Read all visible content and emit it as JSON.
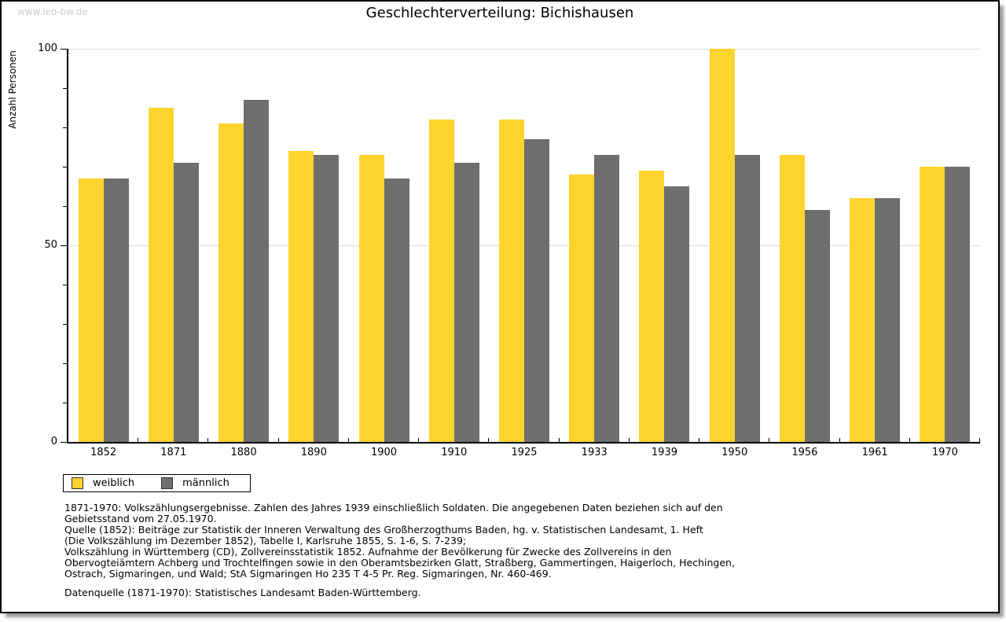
{
  "watermark": "www.leo-bw.de",
  "title": "Geschlechterverteilung: Bichishausen",
  "chart_data": {
    "type": "bar",
    "title": "Geschlechterverteilung: Bichishausen",
    "xlabel": "",
    "ylabel": "Anzahl Personen",
    "ylim": [
      0,
      100
    ],
    "y_major_ticks": [
      0,
      50,
      100
    ],
    "y_minor_step": 10,
    "grid_values": [
      50,
      100
    ],
    "grid_color": "#dddddd",
    "legend_position": "bottom-left",
    "categories": [
      "1852",
      "1871",
      "1880",
      "1890",
      "1900",
      "1910",
      "1925",
      "1933",
      "1939",
      "1950",
      "1956",
      "1961",
      "1970"
    ],
    "series": [
      {
        "name": "weiblich",
        "color": "#fdd32e",
        "values": [
          67,
          85,
          81,
          74,
          73,
          82,
          82,
          68,
          69,
          100,
          73,
          62,
          70
        ]
      },
      {
        "name": "männlich",
        "color": "#6e6e6e",
        "values": [
          67,
          71,
          87,
          73,
          67,
          71,
          77,
          73,
          65,
          73,
          59,
          62,
          70
        ]
      }
    ]
  },
  "footer": {
    "note": "1871-1970: Volkszählungsergebnisse. Zahlen des Jahres 1939 einschließlich Soldaten. Die angegebenen Daten beziehen sich auf den\nGebietsstand vom 27.05.1970.\nQuelle (1852): Beiträge zur Statistik der Inneren Verwaltung des Großherzogthums Baden, hg. v. Statistischen Landesamt, 1. Heft\n(Die Volkszählung im Dezember 1852), Tabelle I, Karlsruhe 1855, S. 1-6, S. 7-239;\nVolkszählung in Württemberg (CD), Zollvereinsstatistik 1852. Aufnahme der Bevölkerung für Zwecke des Zollvereins in den\nObervogteiämtern Achberg und Trochtelfingen sowie in den Oberamtsbezirken Glatt, Straßberg, Gammertingen, Haigerloch, Hechingen,\nOstrach, Sigmaringen, und Wald; StA Sigmaringen Ho 235 T 4-5 Pr. Reg. Sigmaringen, Nr. 460-469.",
    "datenquelle": "Datenquelle (1871-1970): Statistisches Landesamt Baden-Württemberg."
  }
}
